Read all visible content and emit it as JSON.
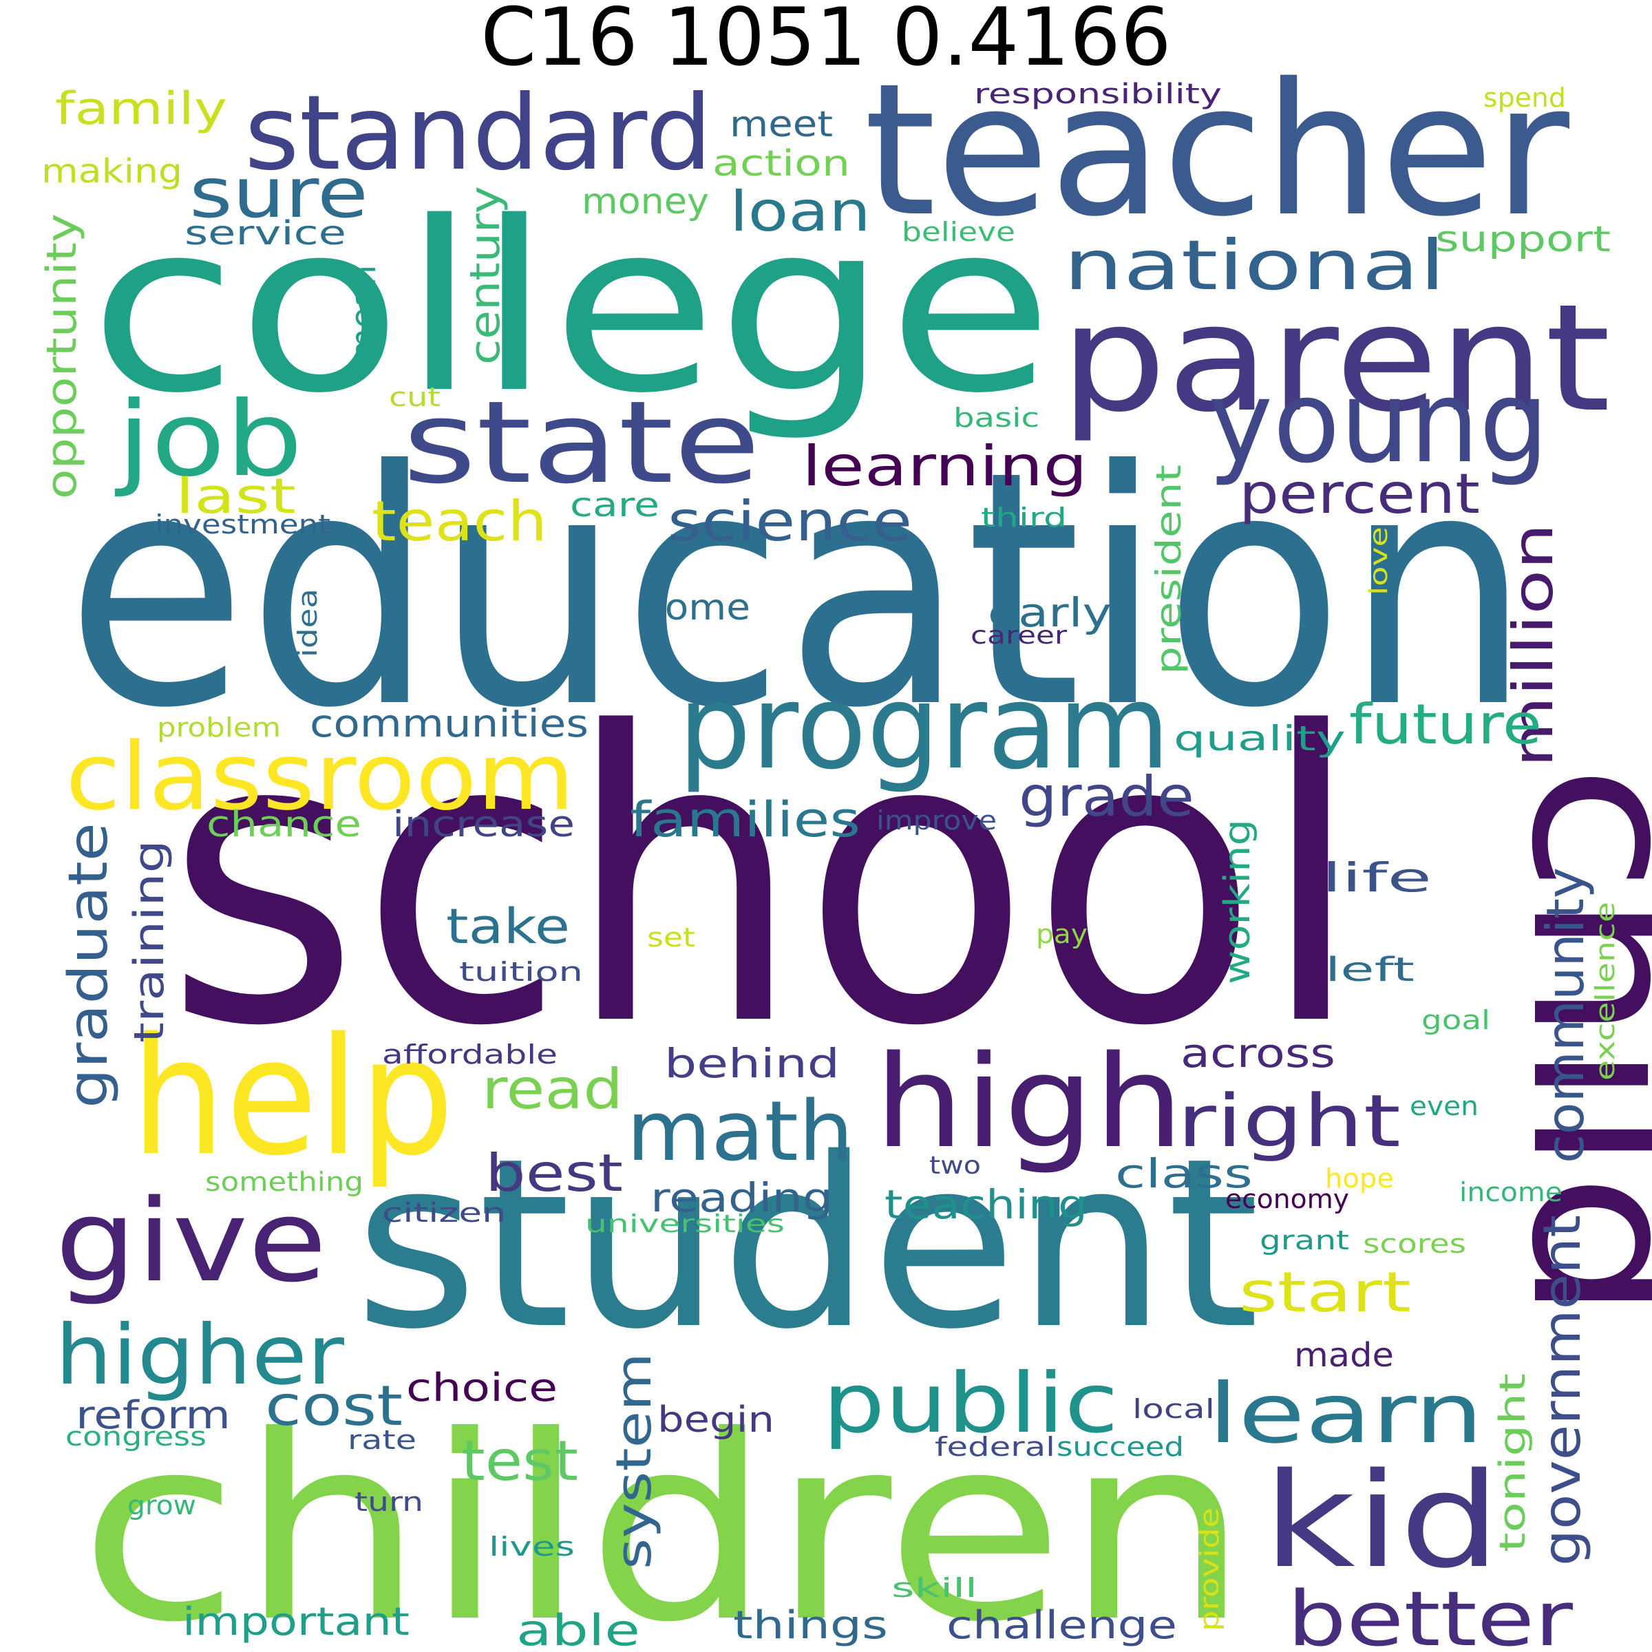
{
  "title": "C16 1051 0.4166",
  "words": [
    {
      "text": "school",
      "color": "#440f5e"
    },
    {
      "text": "education",
      "color": "#2c6f8f"
    },
    {
      "text": "college",
      "color": "#1fa187"
    },
    {
      "text": "teacher",
      "color": "#3b5a8e"
    },
    {
      "text": "student",
      "color": "#2a7c8e"
    },
    {
      "text": "children",
      "color": "#84d44b"
    },
    {
      "text": "child",
      "color": "#440f5e"
    },
    {
      "text": "parent",
      "color": "#433a83"
    },
    {
      "text": "program",
      "color": "#2b7a8e"
    },
    {
      "text": "state",
      "color": "#3e4a89"
    },
    {
      "text": "young",
      "color": "#3f4788"
    },
    {
      "text": "standard",
      "color": "#414388"
    },
    {
      "text": "help",
      "color": "#fde725"
    },
    {
      "text": "high",
      "color": "#481f70"
    },
    {
      "text": "kid",
      "color": "#443983"
    },
    {
      "text": "classroom",
      "color": "#fde725"
    },
    {
      "text": "job",
      "color": "#22a884"
    },
    {
      "text": "give",
      "color": "#482374"
    },
    {
      "text": "math",
      "color": "#2c728e"
    },
    {
      "text": "public",
      "color": "#20928c"
    },
    {
      "text": "learn",
      "color": "#2a788e"
    },
    {
      "text": "higher",
      "color": "#23898e"
    },
    {
      "text": "national",
      "color": "#33638d"
    },
    {
      "text": "better",
      "color": "#472d7b"
    },
    {
      "text": "right",
      "color": "#46307e"
    },
    {
      "text": "sure",
      "color": "#2e6d8e"
    },
    {
      "text": "learning",
      "color": "#440154"
    },
    {
      "text": "science",
      "color": "#355f8d"
    },
    {
      "text": "percent",
      "color": "#472c7a"
    },
    {
      "text": "million",
      "color": "#481a6c"
    },
    {
      "text": "teach",
      "color": "#dde318"
    },
    {
      "text": "loan",
      "color": "#2a788e"
    },
    {
      "text": "future",
      "color": "#25ac82"
    },
    {
      "text": "grade",
      "color": "#404688"
    },
    {
      "text": "community",
      "color": "#39568c"
    },
    {
      "text": "government",
      "color": "#3d4e8a"
    },
    {
      "text": "cost",
      "color": "#2c728e"
    },
    {
      "text": "test",
      "color": "#5ec962"
    },
    {
      "text": "start",
      "color": "#dde318"
    },
    {
      "text": "graduate",
      "color": "#355f8d"
    },
    {
      "text": "read",
      "color": "#7ad151"
    },
    {
      "text": "families",
      "color": "#2a788e"
    },
    {
      "text": "system",
      "color": "#31668e"
    },
    {
      "text": "best",
      "color": "#453781"
    },
    {
      "text": "last",
      "color": "#d2e21b"
    },
    {
      "text": "family",
      "color": "#c8e020"
    },
    {
      "text": "opportunity",
      "color": "#6ccd5a"
    },
    {
      "text": "century",
      "color": "#3aba76"
    },
    {
      "text": "training",
      "color": "#3f4889"
    },
    {
      "text": "take",
      "color": "#2c728e"
    },
    {
      "text": "communities",
      "color": "#31688e"
    },
    {
      "text": "president",
      "color": "#54c568"
    },
    {
      "text": "early",
      "color": "#2d708e"
    },
    {
      "text": "teaching",
      "color": "#21908d"
    },
    {
      "text": "reading",
      "color": "#33638d"
    },
    {
      "text": "behind",
      "color": "#433e85"
    },
    {
      "text": "across",
      "color": "#482878"
    },
    {
      "text": "life",
      "color": "#3b528b"
    },
    {
      "text": "class",
      "color": "#2e6e8e"
    },
    {
      "text": "working",
      "color": "#23a983"
    },
    {
      "text": "tonight",
      "color": "#6ccd5a"
    },
    {
      "text": "money",
      "color": "#5ec962"
    },
    {
      "text": "meet",
      "color": "#31688e"
    },
    {
      "text": "action",
      "color": "#73d056"
    },
    {
      "text": "increase",
      "color": "#414487"
    },
    {
      "text": "chance",
      "color": "#6ece58"
    },
    {
      "text": "quality",
      "color": "#1f9e89"
    },
    {
      "text": "important",
      "color": "#1f9e89"
    },
    {
      "text": "able",
      "color": "#20a486"
    },
    {
      "text": "things",
      "color": "#31688e"
    },
    {
      "text": "challenge",
      "color": "#3d4e8a"
    },
    {
      "text": "choice",
      "color": "#440154"
    },
    {
      "text": "reform",
      "color": "#3b528b"
    },
    {
      "text": "begin",
      "color": "#453882"
    },
    {
      "text": "home",
      "color": "#2d708e"
    },
    {
      "text": "mean",
      "color": "#1fa088"
    },
    {
      "text": "service",
      "color": "#2d708e"
    },
    {
      "text": "making",
      "color": "#bddf26"
    },
    {
      "text": "care",
      "color": "#25ab82"
    },
    {
      "text": "made",
      "color": "#482173"
    },
    {
      "text": "left",
      "color": "#2f6c8e"
    },
    {
      "text": "support",
      "color": "#5ec962"
    },
    {
      "text": "responsibility",
      "color": "#482475"
    },
    {
      "text": "spend",
      "color": "#c2df23"
    },
    {
      "text": "believe",
      "color": "#3dbc74"
    },
    {
      "text": "cut",
      "color": "#b5de2b"
    },
    {
      "text": "basic",
      "color": "#35b779"
    },
    {
      "text": "investment",
      "color": "#33638d"
    },
    {
      "text": "third",
      "color": "#22a884"
    },
    {
      "text": "idea",
      "color": "#2e6e8e"
    },
    {
      "text": "career",
      "color": "#482677"
    },
    {
      "text": "love",
      "color": "#d8e219"
    },
    {
      "text": "problem",
      "color": "#b0dd2f"
    },
    {
      "text": "improve",
      "color": "#3b528b"
    },
    {
      "text": "set",
      "color": "#c8e020"
    },
    {
      "text": "pay",
      "color": "#8fd744"
    },
    {
      "text": "tuition",
      "color": "#3e4c8a"
    },
    {
      "text": "goal",
      "color": "#4ac16d"
    },
    {
      "text": "excellence",
      "color": "#7ad151"
    },
    {
      "text": "affordable",
      "color": "#453781"
    },
    {
      "text": "even",
      "color": "#22a785"
    },
    {
      "text": "something",
      "color": "#6ece58"
    },
    {
      "text": "two",
      "color": "#3e4a89"
    },
    {
      "text": "hope",
      "color": "#fde725"
    },
    {
      "text": "income",
      "color": "#35b779"
    },
    {
      "text": "citizen",
      "color": "#3e4a89"
    },
    {
      "text": "universities",
      "color": "#48c16e"
    },
    {
      "text": "economy",
      "color": "#440154"
    },
    {
      "text": "grant",
      "color": "#1f9a8a"
    },
    {
      "text": "scores",
      "color": "#7ad151"
    },
    {
      "text": "congress",
      "color": "#2ab07f"
    },
    {
      "text": "rate",
      "color": "#39568c"
    },
    {
      "text": "federal",
      "color": "#3e4c8a"
    },
    {
      "text": "succeed",
      "color": "#1f968b"
    },
    {
      "text": "local",
      "color": "#424186"
    },
    {
      "text": "grow",
      "color": "#35b779"
    },
    {
      "text": "turn",
      "color": "#3e4a89"
    },
    {
      "text": "lives",
      "color": "#1f9a8a"
    },
    {
      "text": "provide",
      "color": "#d8e219"
    },
    {
      "text": "skill",
      "color": "#4ac16d"
    }
  ]
}
